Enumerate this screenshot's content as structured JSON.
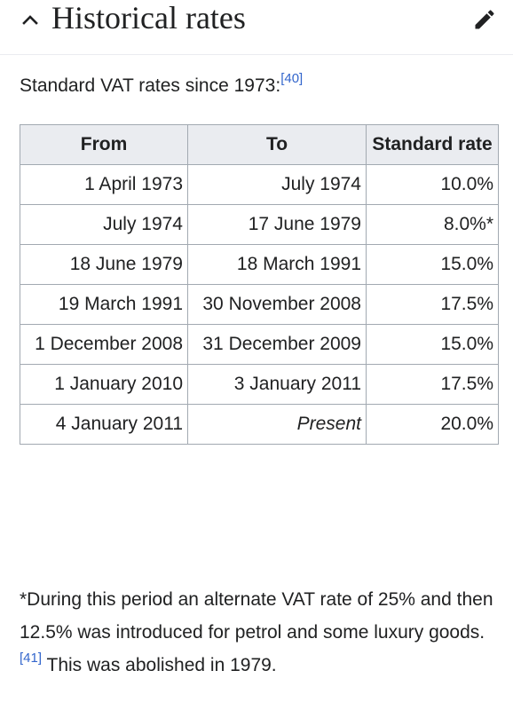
{
  "section": {
    "title": "Historical rates",
    "collapse_icon": "chevron-up-icon",
    "edit_icon": "pencil-icon"
  },
  "intro": {
    "text": "Standard VAT rates since 1973:",
    "ref": "[40]"
  },
  "table": {
    "headers": [
      "From",
      "To",
      "Standard rate"
    ],
    "rows": [
      {
        "from": "1 April 1973",
        "to": "July 1974",
        "rate": "10.0%"
      },
      {
        "from": "July 1974",
        "to": "17 June 1979",
        "rate": "8.0%*"
      },
      {
        "from": "18 June 1979",
        "to": "18 March 1991",
        "rate": "15.0%"
      },
      {
        "from": "19 March 1991",
        "to": "30 November 2008",
        "rate": "17.5%"
      },
      {
        "from": "1 December 2008",
        "to": "31 December 2009",
        "rate": "15.0%"
      },
      {
        "from": "1 January 2010",
        "to": "3 January 2011",
        "rate": "17.5%"
      },
      {
        "from": "4 January 2011",
        "to": "Present",
        "rate": "20.0%"
      }
    ]
  },
  "footnote": {
    "text_before": "*During this period an alternate VAT rate of 25% and then 12.5% was introduced for petrol and some luxury goods.",
    "ref": "[41]",
    "text_after": " This was abolished in 1979."
  },
  "colors": {
    "link": "#3366cc",
    "header_bg": "#eaecf0",
    "border": "#a2a9b1",
    "text": "#202122"
  }
}
